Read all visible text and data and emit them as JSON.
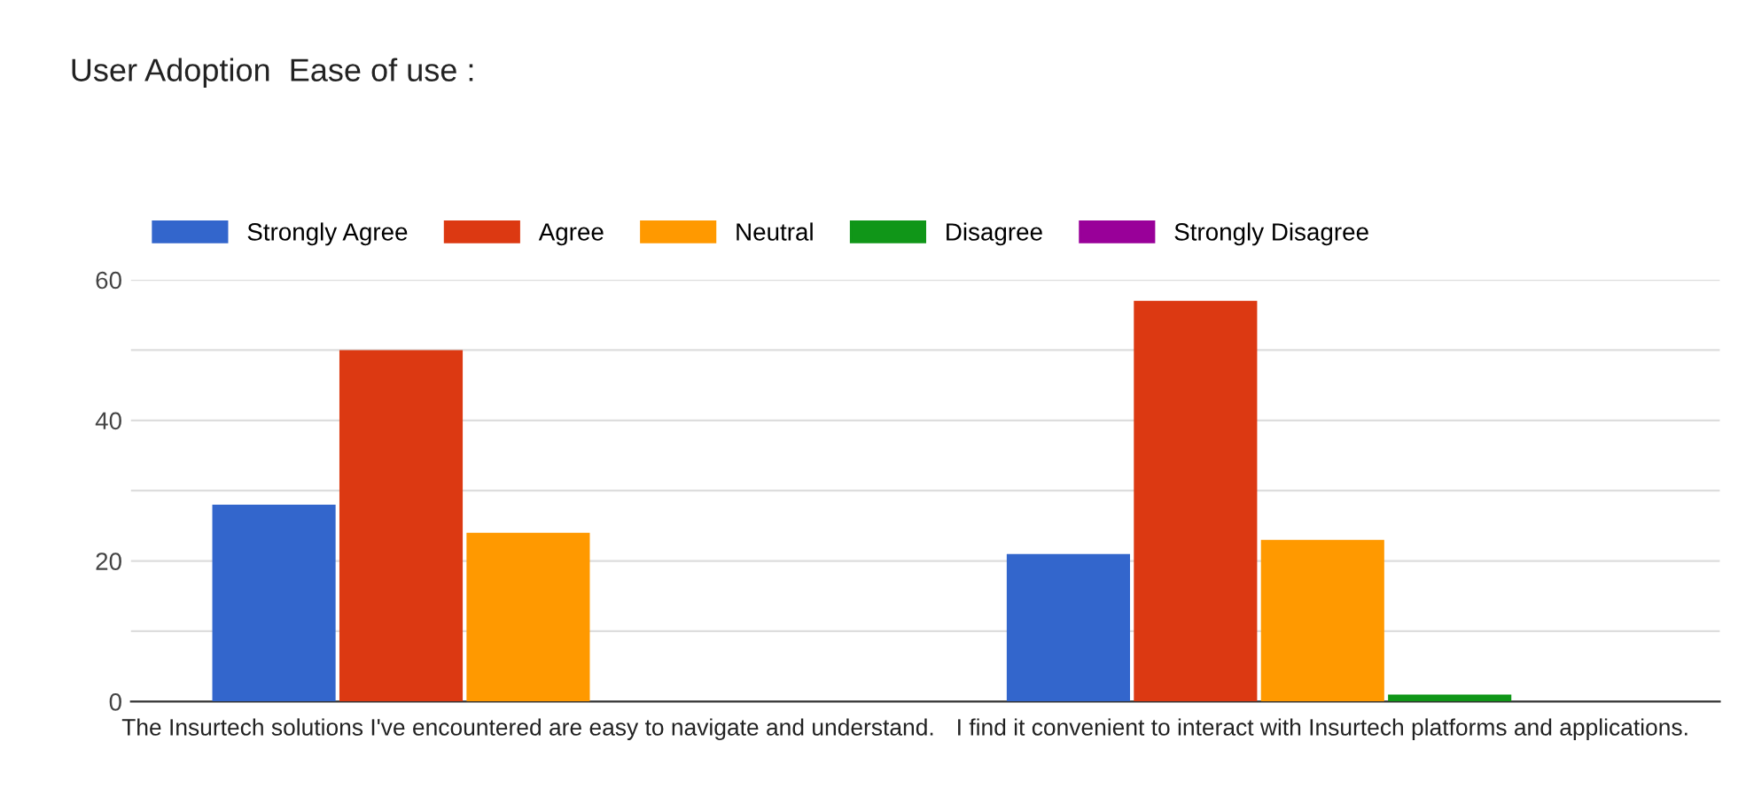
{
  "chart_data": {
    "type": "bar",
    "title": "User Adoption  Ease of use :",
    "categories": [
      "The Insurtech solutions I've encountered are easy to navigate and understand.",
      "I find it convenient to interact with Insurtech platforms and applications."
    ],
    "series": [
      {
        "name": "Strongly Agree",
        "color": "#3366cc",
        "values": [
          28,
          21
        ]
      },
      {
        "name": "Agree",
        "color": "#dc3912",
        "values": [
          50,
          57
        ]
      },
      {
        "name": "Neutral",
        "color": "#ff9900",
        "values": [
          24,
          23
        ]
      },
      {
        "name": "Disagree",
        "color": "#109618",
        "values": [
          0,
          1
        ]
      },
      {
        "name": "Strongly Disagree",
        "color": "#990099",
        "values": [
          0,
          0
        ]
      }
    ],
    "ylim": [
      0,
      60
    ],
    "yticks": [
      0,
      {
        "value": 10,
        "label": null
      },
      20,
      {
        "value": 30,
        "label": null
      },
      40,
      {
        "value": 50,
        "label": null
      },
      60
    ],
    "grid": "y",
    "legend": "top left"
  }
}
